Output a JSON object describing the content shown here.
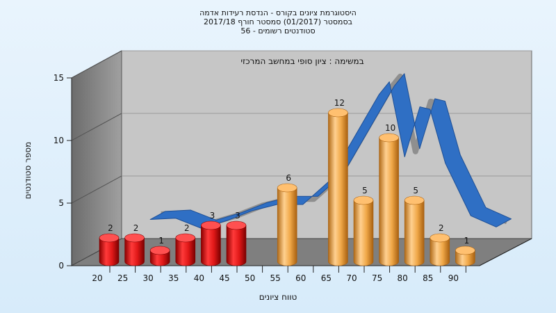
{
  "chart_data": {
    "type": "bar",
    "title_lines": [
      "היסטוגרמת ציונים בקורס - הנדסת רעידות אדמה",
      "בסמסטר   (01/2017)  סמסטר חורף  2017/18",
      "סטודנטים רשומים - 56"
    ],
    "subtitle": "במשימה : ציון סופי במחשב המרכזי",
    "xlabel": "טווח ציונים",
    "ylabel": "מספר סטודנטים",
    "ylim": [
      0,
      15
    ],
    "yticks": [
      0,
      5,
      10,
      15
    ],
    "categories": [
      "20",
      "25",
      "30",
      "35",
      "40",
      "45",
      "50",
      "55",
      "60",
      "65",
      "70",
      "75",
      "80",
      "85",
      "90"
    ],
    "bars": [
      {
        "x": 20,
        "value": 2,
        "group": "fail"
      },
      {
        "x": 25,
        "value": 2,
        "group": "fail"
      },
      {
        "x": 30,
        "value": 1,
        "group": "fail"
      },
      {
        "x": 35,
        "value": 2,
        "group": "fail"
      },
      {
        "x": 40,
        "value": 3,
        "group": "fail"
      },
      {
        "x": 45,
        "value": 3,
        "group": "fail"
      },
      {
        "x": 55,
        "value": 6,
        "group": "pass"
      },
      {
        "x": 65,
        "value": 12,
        "group": "pass"
      },
      {
        "x": 70,
        "value": 5,
        "group": "pass"
      },
      {
        "x": 75,
        "value": 10,
        "group": "pass"
      },
      {
        "x": 80,
        "value": 5,
        "group": "pass"
      },
      {
        "x": 85,
        "value": 2,
        "group": "pass"
      },
      {
        "x": 90,
        "value": 1,
        "group": "pass"
      }
    ],
    "curve": {
      "x": [
        25,
        30,
        35,
        40,
        45,
        50,
        55,
        60,
        65,
        70,
        72,
        75,
        78,
        80,
        83,
        88,
        93
      ],
      "y": [
        2.5,
        2.6,
        1.8,
        2.4,
        3.2,
        3.7,
        3.7,
        5.5,
        9.0,
        12.5,
        13.5,
        7.5,
        11.5,
        11.3,
        7.0,
        2.8,
        1.9
      ]
    },
    "colors": {
      "fail": "#e01818",
      "pass": "#f0a848",
      "curve": "#2f6fc4",
      "wall": "#8a8a8a",
      "plot_bg": "#c4c4c4"
    },
    "grid": true,
    "legend": "none"
  }
}
